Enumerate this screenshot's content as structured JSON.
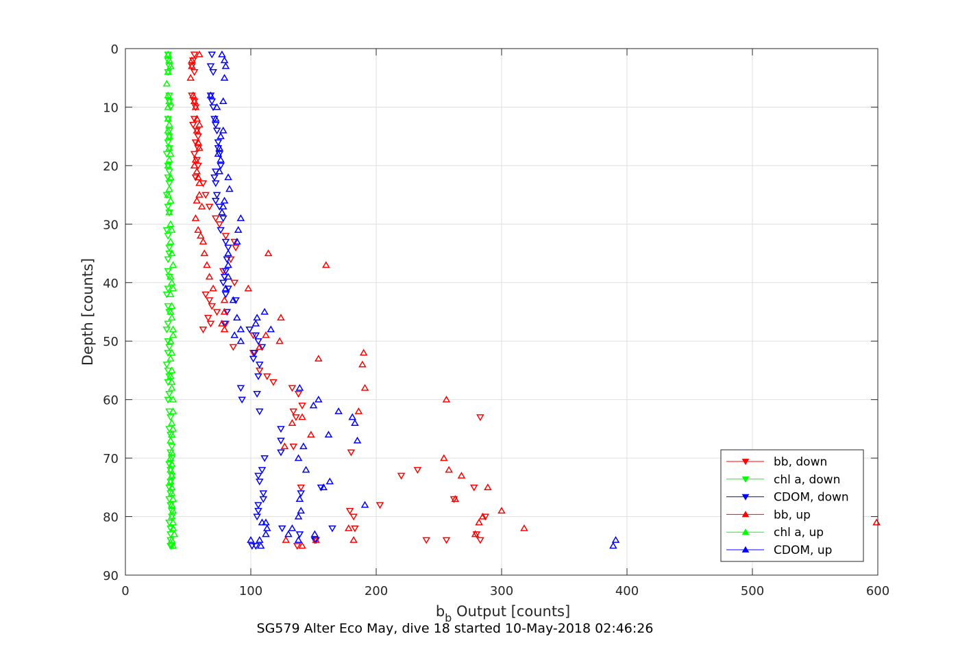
{
  "chart_data": {
    "type": "scatter",
    "title": "SG579 Alter Eco May, dive 18 started 10-May-2018 02:46:26",
    "xlabel": "b",
    "xlabel_sub": "b",
    "xlabel_rest": " Output [counts]",
    "ylabel": "Depth [counts]",
    "xlim": [
      0,
      600
    ],
    "ylim": [
      0,
      90
    ],
    "y_reversed": true,
    "x_ticks": [
      "0",
      "100",
      "200",
      "300",
      "400",
      "500",
      "600"
    ],
    "y_ticks": [
      "0",
      "10",
      "20",
      "30",
      "40",
      "50",
      "60",
      "70",
      "80",
      "90"
    ],
    "grid": true,
    "legend_position": "bottom-right",
    "series": [
      {
        "name": "bb, down",
        "color": "#ff0000",
        "marker": "triangle-down",
        "x": [
          55,
          54,
          53,
          55,
          53,
          55,
          56,
          55,
          54,
          57,
          58,
          56,
          58,
          55,
          57,
          58,
          56,
          62,
          64,
          67,
          72,
          75,
          80,
          87,
          88,
          84,
          78,
          87,
          64,
          67,
          69,
          66,
          73,
          68,
          62,
          80,
          102,
          86,
          102,
          107,
          113,
          118,
          133,
          138,
          141,
          134,
          136,
          134,
          180,
          233,
          220,
          203,
          179,
          182,
          140,
          256,
          287,
          280,
          283,
          137,
          240,
          278,
          283,
          262,
          183
        ],
        "y": [
          1,
          2,
          3,
          4,
          8,
          9,
          10,
          12,
          13,
          14,
          15,
          16,
          17,
          18,
          19,
          20,
          22,
          23,
          25,
          27,
          29,
          30,
          32,
          33,
          34,
          36,
          38,
          40,
          42,
          43,
          44,
          46,
          45,
          47,
          48,
          47,
          49,
          51,
          52,
          55,
          56,
          57,
          58,
          59,
          61,
          62,
          63,
          68,
          69,
          72,
          73,
          78,
          79,
          80,
          75,
          84,
          80,
          83,
          84,
          85,
          84,
          75,
          63,
          77,
          82
        ]
      },
      {
        "name": "chl a, down",
        "color": "#00ff00",
        "marker": "triangle-down",
        "x": [
          34,
          34,
          35,
          34,
          35,
          35,
          36,
          34,
          35,
          35,
          34,
          35,
          33,
          34,
          35,
          34,
          35,
          33,
          34,
          35,
          33,
          34,
          35,
          35,
          34,
          34,
          35,
          34,
          33,
          34,
          35,
          34,
          33,
          34,
          35,
          34,
          33,
          34,
          35,
          34,
          35,
          34,
          35,
          36,
          35,
          36,
          37,
          36,
          37,
          35,
          36,
          37,
          36,
          35,
          36,
          35,
          36,
          37,
          37,
          35,
          36,
          36,
          36,
          36,
          37
        ],
        "y": [
          1,
          2,
          3,
          4,
          8,
          9,
          10,
          12,
          14,
          15,
          16,
          17,
          18,
          20,
          21,
          22,
          23,
          25,
          27,
          28,
          31,
          32,
          34,
          35,
          36,
          38,
          39,
          41,
          42,
          44,
          45,
          47,
          48,
          50,
          51,
          52,
          54,
          55,
          56,
          57,
          59,
          60,
          62,
          63,
          65,
          66,
          68,
          69,
          70,
          71,
          72,
          73,
          74,
          75,
          76,
          77,
          78,
          79,
          80,
          81,
          82,
          83,
          84,
          85,
          85
        ]
      },
      {
        "name": "CDOM, down",
        "color": "#0000ff",
        "marker": "triangle-down",
        "x": [
          69,
          68,
          70,
          68,
          69,
          70,
          71,
          72,
          73,
          74,
          74,
          75,
          76,
          72,
          71,
          72,
          73,
          72,
          75,
          78,
          76,
          80,
          82,
          81,
          80,
          79,
          78,
          82,
          80,
          88,
          81,
          79,
          99,
          104,
          106,
          109,
          103,
          102,
          107,
          106,
          92,
          105,
          93,
          107,
          124,
          124,
          124,
          111,
          109,
          106,
          107,
          110,
          110,
          106,
          106,
          105,
          125,
          139,
          152,
          104,
          140,
          156,
          151,
          165,
          101
        ],
        "y": [
          1,
          3,
          4,
          8,
          9,
          10,
          12,
          13,
          14,
          16,
          17,
          18,
          20,
          21,
          22,
          23,
          25,
          26,
          27,
          29,
          31,
          33,
          34,
          36,
          38,
          39,
          40,
          41,
          42,
          43,
          45,
          47,
          48,
          49,
          50,
          51,
          52,
          53,
          54,
          56,
          58,
          59,
          60,
          62,
          65,
          67,
          69,
          70,
          72,
          73,
          74,
          76,
          77,
          78,
          79,
          80,
          82,
          83,
          84,
          85,
          76,
          75,
          84,
          82,
          85
        ]
      },
      {
        "name": "bb, up",
        "color": "#ff0000",
        "marker": "triangle-up",
        "x": [
          59,
          53,
          53,
          52,
          54,
          55,
          56,
          57,
          59,
          57,
          58,
          59,
          56,
          55,
          57,
          58,
          59,
          59,
          57,
          61,
          56,
          58,
          60,
          62,
          63,
          65,
          67,
          70,
          79,
          79,
          77,
          79,
          114,
          160,
          98,
          124,
          123,
          112,
          107,
          154,
          190,
          189,
          191,
          186,
          141,
          133,
          148,
          127,
          256,
          254,
          258,
          268,
          289,
          300,
          318,
          279,
          263,
          285,
          282,
          599,
          141,
          128,
          152,
          178,
          182
        ],
        "y": [
          1,
          2,
          3,
          5,
          8,
          9,
          10,
          12,
          13,
          14,
          16,
          17,
          19,
          20,
          21,
          22,
          23,
          25,
          26,
          27,
          29,
          31,
          32,
          33,
          35,
          37,
          39,
          41,
          43,
          45,
          47,
          48,
          35,
          37,
          41,
          46,
          50,
          49,
          51,
          53,
          52,
          54,
          58,
          62,
          63,
          64,
          66,
          68,
          60,
          70,
          72,
          73,
          75,
          79,
          82,
          83,
          77,
          80,
          81,
          81,
          85,
          84,
          84,
          82,
          84
        ]
      },
      {
        "name": "chl a, up",
        "color": "#00ff00",
        "marker": "triangle-up",
        "x": [
          34,
          35,
          36,
          34,
          33,
          34,
          35,
          34,
          34,
          35,
          34,
          35,
          35,
          36,
          35,
          34,
          36,
          35,
          34,
          36,
          35,
          36,
          37,
          36,
          37,
          38,
          36,
          37,
          38,
          36,
          37,
          36,
          37,
          38,
          38,
          36,
          37,
          36,
          37,
          36,
          37,
          37,
          38,
          38,
          37,
          38,
          37,
          36,
          37,
          36,
          37,
          36,
          37,
          36,
          37,
          37,
          38,
          37,
          38,
          37,
          38,
          38,
          39,
          37,
          38
        ],
        "y": [
          1,
          2,
          3,
          4,
          6,
          8,
          9,
          10,
          12,
          13,
          14,
          15,
          17,
          18,
          19,
          20,
          22,
          24,
          25,
          26,
          28,
          30,
          31,
          33,
          35,
          37,
          39,
          40,
          41,
          42,
          44,
          45,
          46,
          48,
          49,
          50,
          52,
          53,
          55,
          56,
          57,
          58,
          60,
          62,
          64,
          65,
          66,
          67,
          69,
          70,
          71,
          72,
          73,
          74,
          75,
          76,
          77,
          78,
          79,
          80,
          81,
          82,
          83,
          84,
          85
        ]
      },
      {
        "name": "CDOM, up",
        "color": "#0000ff",
        "marker": "triangle-up",
        "x": [
          77,
          79,
          80,
          79,
          68,
          78,
          73,
          72,
          78,
          76,
          75,
          74,
          76,
          75,
          82,
          83,
          79,
          78,
          77,
          92,
          90,
          89,
          82,
          82,
          82,
          80,
          86,
          89,
          92,
          87,
          92,
          111,
          105,
          104,
          116,
          139,
          154,
          150,
          170,
          181,
          183,
          162,
          185,
          142,
          138,
          144,
          163,
          158,
          139,
          191,
          138,
          112,
          113,
          130,
          138,
          107,
          108,
          100,
          109,
          389,
          391,
          140,
          151,
          133,
          112
        ],
        "y": [
          1,
          2,
          3,
          5,
          8,
          9,
          10,
          12,
          14,
          15,
          17,
          18,
          19,
          21,
          22,
          24,
          26,
          27,
          28,
          29,
          31,
          33,
          35,
          37,
          39,
          41,
          43,
          46,
          48,
          49,
          50,
          45,
          46,
          47,
          48,
          58,
          60,
          61,
          62,
          63,
          64,
          66,
          67,
          68,
          70,
          72,
          74,
          75,
          77,
          78,
          80,
          81,
          82,
          83,
          84,
          84,
          85,
          84,
          81,
          85,
          84,
          79,
          83,
          82,
          83
        ]
      }
    ]
  }
}
